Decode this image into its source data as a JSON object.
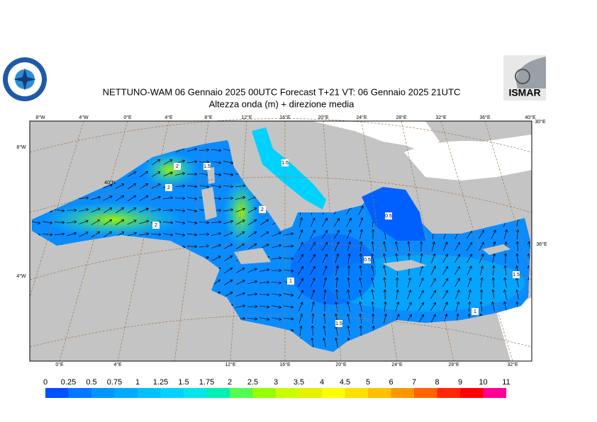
{
  "header": {
    "title": "NETTUNO-WAM  06  Gennaio  2025 00UTC Forecast T+21 VT: 06  Gennaio  2025 21UTC",
    "subtitle": "Altezza onda (m) + direzione media",
    "logo_right": "ISMAR"
  },
  "map": {
    "top_labels": [
      "8°W",
      "4°W",
      "0°E",
      "4°E",
      "8°E",
      "12°E",
      "16°E",
      "20°E",
      "24°E",
      "28°E",
      "32°E",
      "36°E",
      "40°E"
    ],
    "bottom_labels": [
      "0°E",
      "4°E",
      "12°E",
      "16°E",
      "20°E",
      "24°E",
      "28°E",
      "32°E"
    ],
    "left_labels": [
      "8°W",
      "40°N",
      "4°W"
    ],
    "right_labels": [
      "30°E",
      "36°E"
    ],
    "contour_labels": [
      "2",
      "1.5",
      "2",
      "2",
      "1.5",
      "2",
      "0.5",
      "1",
      "0.5",
      "1.5",
      "1.5",
      "1"
    ]
  },
  "legend": {
    "labels": [
      "0",
      "0.25",
      "0.5",
      "0.75",
      "1",
      "1.25",
      "1.5",
      "1.75",
      "2",
      "2.5",
      "3",
      "3.5",
      "4",
      "4.5",
      "5",
      "6",
      "7",
      "8",
      "9",
      "10",
      "11"
    ],
    "colors": [
      "#0050ff",
      "#0078ff",
      "#0096ff",
      "#00aaff",
      "#00c0ff",
      "#00d2ff",
      "#00e6e6",
      "#00f0b4",
      "#50ff50",
      "#96ff00",
      "#c8ff00",
      "#e6f000",
      "#ffff00",
      "#ffe000",
      "#ffc000",
      "#ff9600",
      "#ff6400",
      "#ff2800",
      "#ff0000",
      "#ff0096"
    ]
  }
}
